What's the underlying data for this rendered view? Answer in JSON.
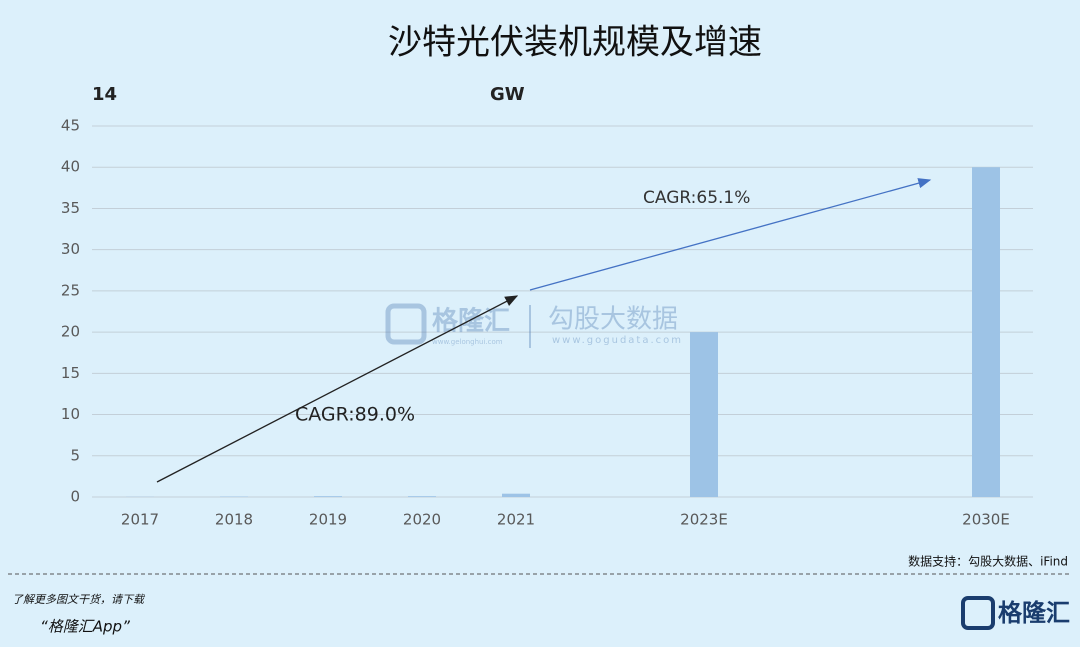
{
  "chart_data": {
    "type": "bar",
    "title": "沙特光伏装机规模及增速",
    "corner_label": "14",
    "unit_label": "GW",
    "categories": [
      "2017",
      "2018",
      "2019",
      "2020",
      "2021",
      null,
      "2023E",
      null,
      null,
      "2030E"
    ],
    "values": [
      0.02,
      0.05,
      0.1,
      0.1,
      0.4,
      null,
      20,
      null,
      null,
      40
    ],
    "color": "#9dc3e6",
    "ylim": [
      0,
      45
    ],
    "yticks": [
      0,
      5,
      10,
      15,
      20,
      25,
      30,
      35,
      40,
      45
    ],
    "grid": true,
    "annotations": [
      "CAGR:89.0%",
      "CAGR:65.1%"
    ],
    "source": "数据支持：勾股大数据、iFind"
  },
  "watermark": {
    "brand": "格隆汇",
    "brand_url": "www.gelonghui.com",
    "name": "勾股大数据",
    "name_url": "www.gogudata.com"
  },
  "footer": {
    "line1": "了解更多图文干货，请下载",
    "line2": "“格隆汇App”",
    "logo": "格隆汇"
  }
}
